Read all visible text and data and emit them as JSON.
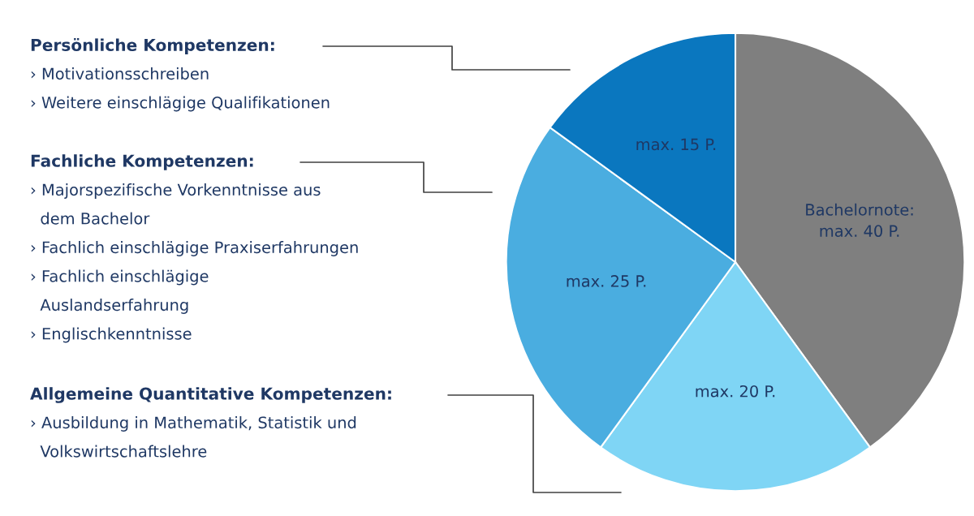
{
  "chart_data": {
    "type": "pie",
    "categories": [
      "Bachelornote:\nmax. 40 P.",
      "max. 20 P.",
      "max. 25 P.",
      "max. 15 P."
    ],
    "values": [
      40,
      20,
      25,
      15
    ],
    "colors": [
      "#7f7f7f",
      "#7fd5f5",
      "#4aade0",
      "#0a77bf"
    ],
    "annotations": [
      "Persönliche Kompetenzen:\n› Motivationsschreiben\n› Weitere einschlägige Qualifikationen",
      "Fachliche Kompetenzen:\n› Majorspezifische Vorkenntnisse aus\n  dem Bachelor\n› Fachlich einschlägige Praxiserfahrungen\n› Fachlich einschlägige\n  Auslandserfahrung\n› Englischkenntnisse",
      "Allgemeine Quantitative Kompetenzen:\n› Ausbildung in Mathematik, Statistik und\n  Volkswirtschaftslehre"
    ]
  }
}
